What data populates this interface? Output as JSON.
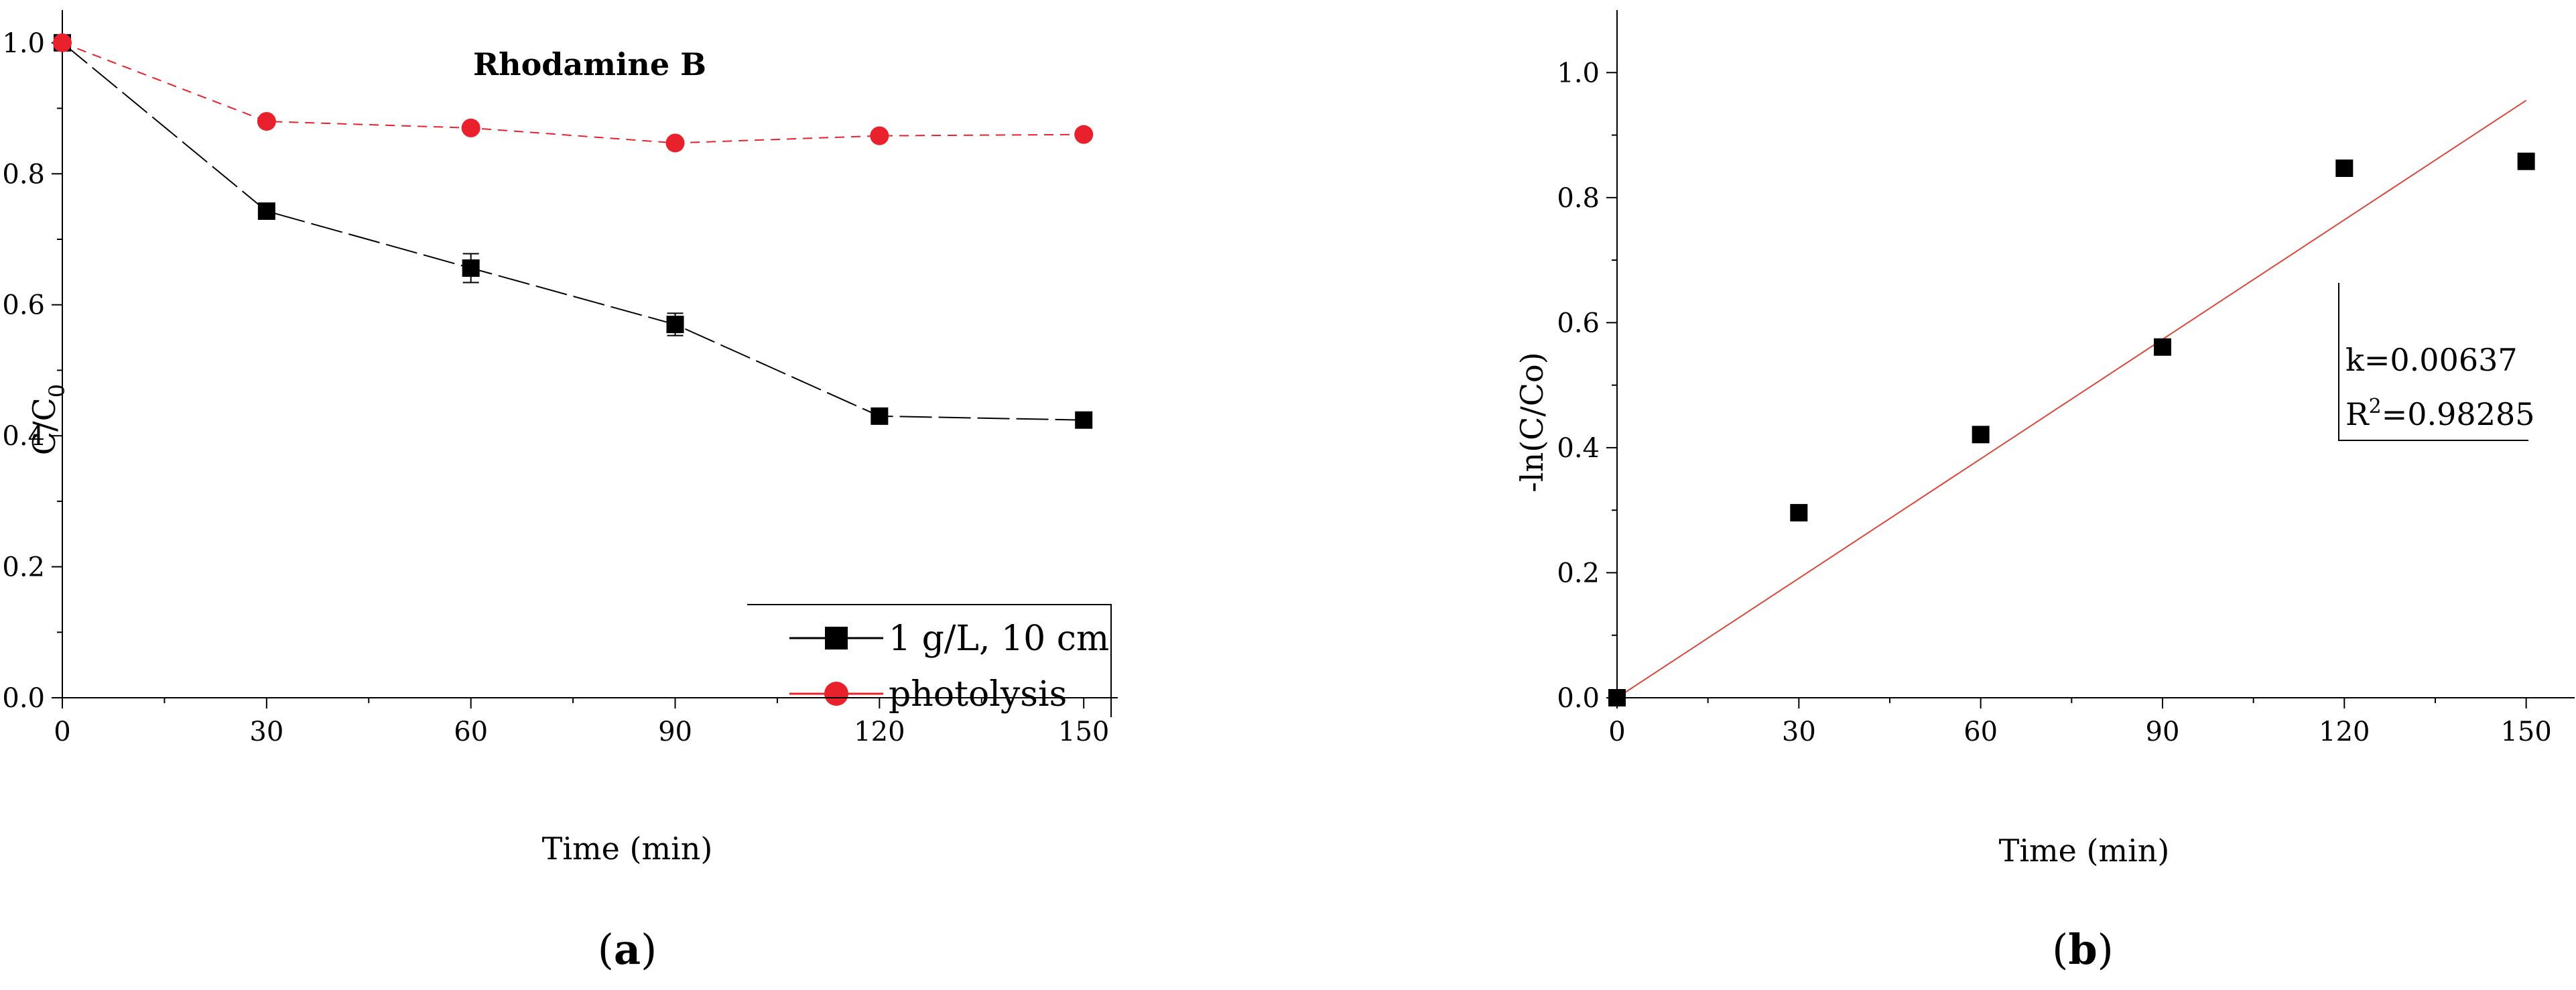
{
  "chart_data": [
    {
      "panel": "(a)",
      "panel_parts": [
        "(",
        "a",
        ")"
      ],
      "type": "line",
      "title": "Rhodamine B",
      "xlabel": "Time (min)",
      "ylabel": "C/C0",
      "ylabel_parts": {
        "main": "C/C",
        "sub": "0"
      },
      "xlim": [
        0,
        155
      ],
      "ylim": [
        0,
        1.05
      ],
      "xticks": [
        0,
        30,
        60,
        90,
        120,
        150
      ],
      "xtick_labels": [
        "0",
        "30",
        "60",
        "90",
        "120",
        "150"
      ],
      "yticks": [
        0.0,
        0.2,
        0.4,
        0.6,
        0.8,
        1.0
      ],
      "ytick_labels": [
        "0.0",
        "0.2",
        "0.4",
        "0.6",
        "0.8",
        "1.0"
      ],
      "legend": "bottom-right",
      "grid": false,
      "series": [
        {
          "name": "1 g/L, 10 cm",
          "color": "#000000",
          "marker": "square",
          "line": "dashed",
          "x": [
            0,
            30,
            60,
            90,
            120,
            150
          ],
          "y": [
            1.0,
            0.743,
            0.656,
            0.57,
            0.43,
            0.424
          ],
          "error": [
            0,
            0.008,
            0.022,
            0.017,
            0.008,
            0.006
          ]
        },
        {
          "name": "photolysis",
          "color": "#e8212c",
          "marker": "circle",
          "line": "dashed",
          "x": [
            0,
            30,
            60,
            90,
            120,
            150
          ],
          "y": [
            1.0,
            0.88,
            0.87,
            0.847,
            0.858,
            0.86
          ],
          "error": [
            0,
            0,
            0,
            0,
            0,
            0
          ]
        }
      ]
    },
    {
      "panel": "(b)",
      "panel_parts": [
        "(",
        "b",
        ")"
      ],
      "type": "scatter",
      "xlabel": "Time (min)",
      "ylabel": "-ln(C/Co)",
      "xlim": [
        0,
        158
      ],
      "ylim": [
        0,
        1.1
      ],
      "xticks": [
        0,
        30,
        60,
        90,
        120,
        150
      ],
      "xtick_labels": [
        "0",
        "30",
        "60",
        "90",
        "120",
        "150"
      ],
      "yticks": [
        0.0,
        0.2,
        0.4,
        0.6,
        0.8,
        1.0
      ],
      "ytick_labels": [
        "0.0",
        "0.2",
        "0.4",
        "0.6",
        "0.8",
        "1.0"
      ],
      "grid": false,
      "series": [
        {
          "color": "#000000",
          "marker": "square",
          "x": [
            0,
            30,
            60,
            90,
            120,
            150
          ],
          "y": [
            0.0,
            0.296,
            0.421,
            0.561,
            0.847,
            0.858
          ]
        }
      ],
      "fit": {
        "color": "#d9473b",
        "slope": 0.00637,
        "intercept": 0.0,
        "x_range": [
          0,
          150
        ]
      },
      "annotation": {
        "k_text": "k=0.00637",
        "r2_prefix": "R",
        "r2_sup": "2",
        "r2_value": "=0.98285"
      }
    }
  ]
}
